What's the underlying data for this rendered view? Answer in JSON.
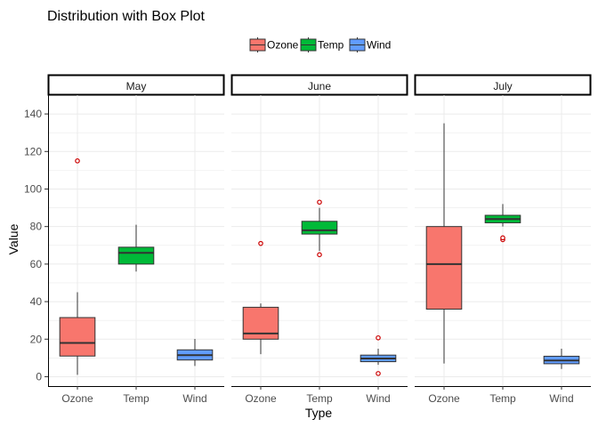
{
  "chart_data": {
    "type": "box",
    "title": "Distribution with Box Plot",
    "xlabel": "Type",
    "ylabel": "Value",
    "ylim": [
      -5,
      150
    ],
    "yticks": [
      0,
      20,
      40,
      60,
      80,
      100,
      120,
      140
    ],
    "categories": [
      "Ozone",
      "Temp",
      "Wind"
    ],
    "legend": {
      "position": "top",
      "entries": [
        "Ozone",
        "Temp",
        "Wind"
      ]
    },
    "colors": {
      "Ozone": "#f8766d",
      "Temp": "#00ba38",
      "Wind": "#619cff",
      "outlier": "#cc0000",
      "grid": "#ebebeb"
    },
    "grid": true,
    "facets": [
      {
        "label": "May",
        "boxes": [
          {
            "category": "Ozone",
            "low": 1,
            "q1": 11,
            "median": 18,
            "q3": 31.5,
            "high": 45,
            "outliers": [
              115
            ]
          },
          {
            "category": "Temp",
            "low": 56,
            "q1": 60,
            "median": 66,
            "q3": 69,
            "high": 81,
            "outliers": []
          },
          {
            "category": "Wind",
            "low": 5.7,
            "q1": 8.9,
            "median": 11.5,
            "q3": 14.3,
            "high": 20.1,
            "outliers": []
          }
        ]
      },
      {
        "label": "June",
        "boxes": [
          {
            "category": "Ozone",
            "low": 12,
            "q1": 20,
            "median": 23,
            "q3": 37,
            "high": 39,
            "outliers": [
              71
            ]
          },
          {
            "category": "Temp",
            "low": 67,
            "q1": 76,
            "median": 78,
            "q3": 82.8,
            "high": 90,
            "outliers": [
              65,
              93
            ]
          },
          {
            "category": "Wind",
            "low": 6.3,
            "q1": 8,
            "median": 9.7,
            "q3": 11.5,
            "high": 14.9,
            "outliers": [
              1.7,
              20.7
            ]
          }
        ]
      },
      {
        "label": "July",
        "boxes": [
          {
            "category": "Ozone",
            "low": 7,
            "q1": 36,
            "median": 60,
            "q3": 80,
            "high": 135,
            "outliers": []
          },
          {
            "category": "Temp",
            "low": 80,
            "q1": 82,
            "median": 84,
            "q3": 86,
            "high": 92,
            "outliers": [
              73,
              74
            ]
          },
          {
            "category": "Wind",
            "low": 4.1,
            "q1": 6.9,
            "median": 8.6,
            "q3": 10.9,
            "high": 14.9,
            "outliers": []
          }
        ]
      }
    ]
  }
}
